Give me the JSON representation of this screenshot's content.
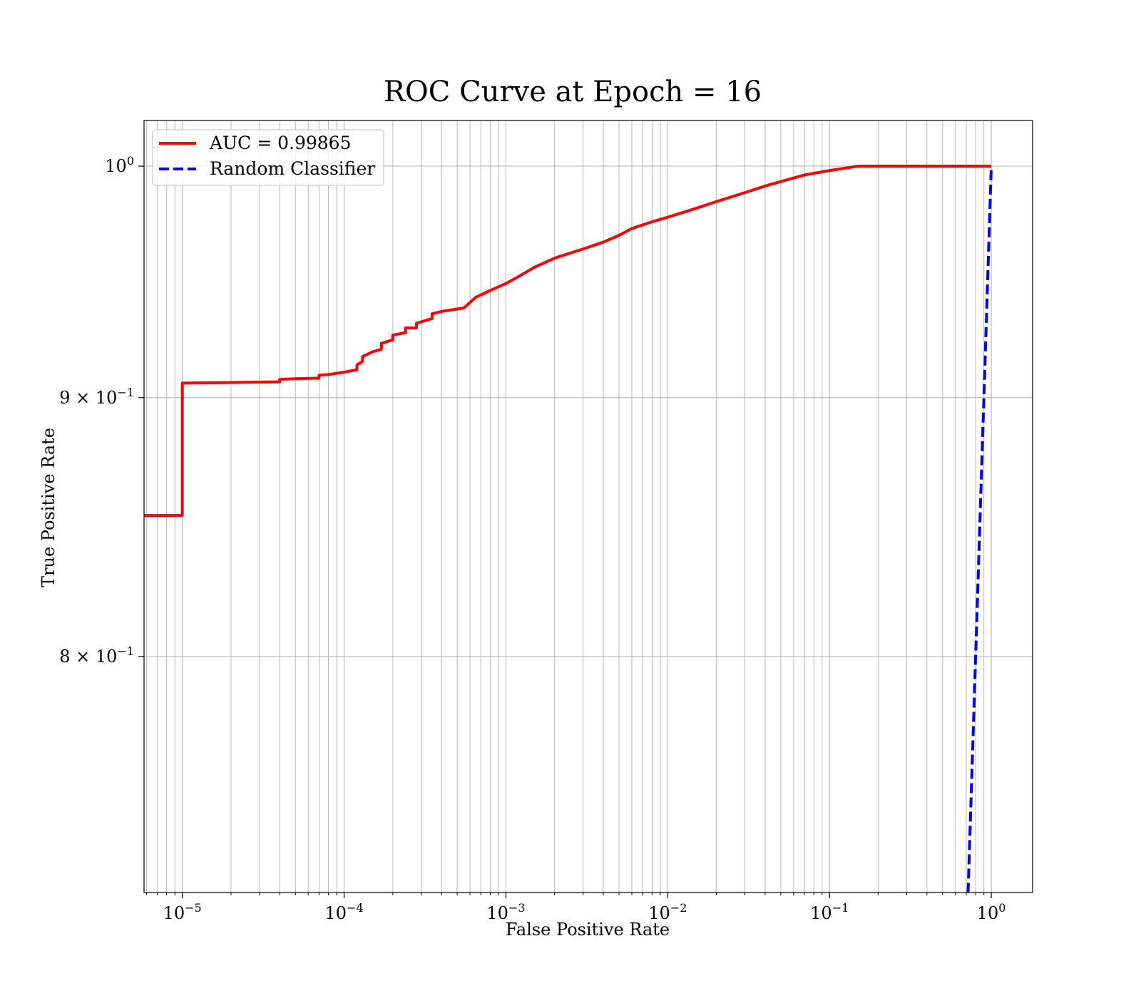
{
  "chart_data": {
    "type": "line",
    "title": "ROC Curve at Epoch = 16",
    "xlabel": "False Positive Rate",
    "ylabel": "True Positive Rate",
    "xscale": "log",
    "yscale": "log",
    "xlim": [
      5.8e-06,
      1.8
    ],
    "ylim": [
      0.7185,
      1.021
    ],
    "grid": true,
    "grid_minor": true,
    "legend_position": "top-left",
    "x_ticks": [
      {
        "base": "10",
        "exp": "−5",
        "value": 1e-05
      },
      {
        "base": "10",
        "exp": "−4",
        "value": 0.0001
      },
      {
        "base": "10",
        "exp": "−3",
        "value": 0.001
      },
      {
        "base": "10",
        "exp": "−2",
        "value": 0.01
      },
      {
        "base": "10",
        "exp": "−1",
        "value": 0.1
      },
      {
        "base": "10",
        "exp": "0",
        "value": 1
      }
    ],
    "y_ticks": [
      {
        "mant": "",
        "base": "10",
        "exp": "0",
        "value": 1.0
      },
      {
        "mant": "9 × ",
        "base": "10",
        "exp": "−1",
        "value": 0.9
      },
      {
        "mant": "8 × ",
        "base": "10",
        "exp": "−1",
        "value": 0.8
      }
    ],
    "series": [
      {
        "name": "AUC = 0.99865",
        "color": "#ff0000",
        "style": "solid",
        "x": [
          5.8e-06,
          1e-05,
          1e-05,
          2e-05,
          4e-05,
          4e-05,
          5e-05,
          7e-05,
          7e-05,
          8e-05,
          0.0001,
          0.00012,
          0.00012,
          0.00013,
          0.00013,
          0.00014,
          0.00015,
          0.00017,
          0.00017,
          0.0002,
          0.0002,
          0.00024,
          0.00024,
          0.00028,
          0.00028,
          0.00035,
          0.00035,
          0.0004,
          0.00055,
          0.00065,
          0.0008,
          0.001,
          0.0012,
          0.0015,
          0.002,
          0.003,
          0.004,
          0.005,
          0.006,
          0.008,
          0.01,
          0.015,
          0.02,
          0.03,
          0.04,
          0.05,
          0.07,
          0.1,
          0.15,
          0.2,
          0.5,
          1.0
        ],
        "y": [
          0.853,
          0.853,
          0.906,
          0.9062,
          0.9065,
          0.9075,
          0.9078,
          0.908,
          0.9092,
          0.9095,
          0.9105,
          0.9115,
          0.9135,
          0.915,
          0.917,
          0.918,
          0.919,
          0.92,
          0.9225,
          0.924,
          0.926,
          0.927,
          0.929,
          0.929,
          0.931,
          0.933,
          0.935,
          0.936,
          0.9375,
          0.942,
          0.945,
          0.948,
          0.951,
          0.955,
          0.959,
          0.963,
          0.966,
          0.969,
          0.972,
          0.975,
          0.977,
          0.981,
          0.984,
          0.988,
          0.991,
          0.993,
          0.996,
          0.998,
          1.0,
          1.0,
          1.0,
          1.0
        ]
      },
      {
        "name": "Random Classifier",
        "color": "#0000ff",
        "style": "dashed",
        "x": [
          0.7,
          0.75,
          0.8,
          0.85,
          0.9,
          0.95,
          1.0
        ],
        "y": [
          0.7,
          0.75,
          0.8,
          0.85,
          0.9,
          0.95,
          1.0
        ]
      }
    ]
  }
}
